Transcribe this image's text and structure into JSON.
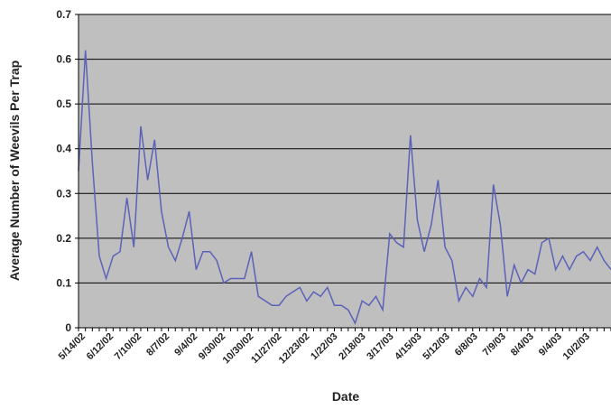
{
  "chart_data": {
    "type": "line",
    "title": "",
    "xlabel": "Date",
    "ylabel": "Average Number of Weevils Per Trap",
    "ylim": [
      0,
      0.7
    ],
    "yticks": [
      "0",
      "0.1",
      "0.2",
      "0.3",
      "0.4",
      "0.5",
      "0.6",
      "0.7"
    ],
    "xtick_labels": [
      "5/14/02",
      "6/12/02",
      "7/10/02",
      "8/7/02",
      "9/4/02",
      "9/30/02",
      "10/30/02",
      "11/27/02",
      "12/23/02",
      "1/22/03",
      "2/18/03",
      "3/17/03",
      "4/15/03",
      "5/12/03",
      "6/8/03",
      "7/9/03",
      "8/4/03",
      "9/4/03",
      "10/2/03"
    ],
    "grid": true,
    "colors": {
      "line": "#5b62b8",
      "plot_bg": "#bfbfbf",
      "grid": "#000000"
    },
    "series": [
      {
        "name": "",
        "values": [
          0.35,
          0.62,
          0.37,
          0.16,
          0.11,
          0.16,
          0.17,
          0.29,
          0.18,
          0.45,
          0.33,
          0.42,
          0.26,
          0.18,
          0.15,
          0.2,
          0.26,
          0.13,
          0.17,
          0.17,
          0.15,
          0.1,
          0.11,
          0.11,
          0.11,
          0.17,
          0.07,
          0.06,
          0.05,
          0.05,
          0.07,
          0.08,
          0.09,
          0.06,
          0.08,
          0.07,
          0.09,
          0.05,
          0.05,
          0.04,
          0.01,
          0.06,
          0.05,
          0.07,
          0.04,
          0.21,
          0.19,
          0.18,
          0.43,
          0.24,
          0.17,
          0.23,
          0.33,
          0.18,
          0.15,
          0.06,
          0.09,
          0.07,
          0.11,
          0.09,
          0.32,
          0.23,
          0.07,
          0.14,
          0.1,
          0.13,
          0.12,
          0.19,
          0.2,
          0.13,
          0.16,
          0.13,
          0.16,
          0.17,
          0.15,
          0.18,
          0.15,
          0.13
        ]
      }
    ]
  }
}
